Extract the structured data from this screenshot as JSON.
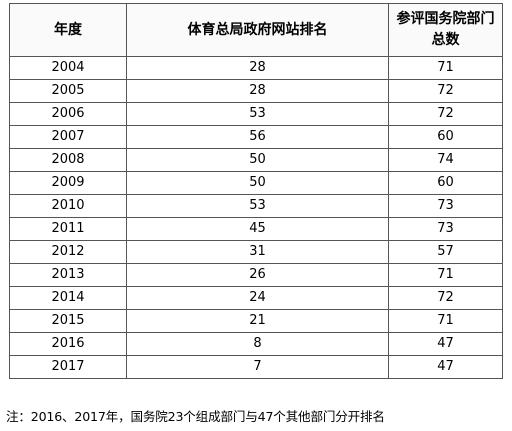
{
  "table": {
    "headers": [
      "年度",
      "体育总局政府网站排名",
      "参评国务院部门总数"
    ],
    "rows": [
      [
        "2004",
        "28",
        "71"
      ],
      [
        "2005",
        "28",
        "72"
      ],
      [
        "2006",
        "53",
        "72"
      ],
      [
        "2007",
        "56",
        "60"
      ],
      [
        "2008",
        "50",
        "74"
      ],
      [
        "2009",
        "50",
        "60"
      ],
      [
        "2010",
        "53",
        "73"
      ],
      [
        "2011",
        "45",
        "73"
      ],
      [
        "2012",
        "31",
        "57"
      ],
      [
        "2013",
        "26",
        "71"
      ],
      [
        "2014",
        "24",
        "72"
      ],
      [
        "2015",
        "21",
        "71"
      ],
      [
        "2016",
        "8",
        "47"
      ],
      [
        "2017",
        "7",
        "47"
      ]
    ]
  },
  "note": "注：2016、2017年，国务院23个组成部门与47个其他部门分开排名"
}
